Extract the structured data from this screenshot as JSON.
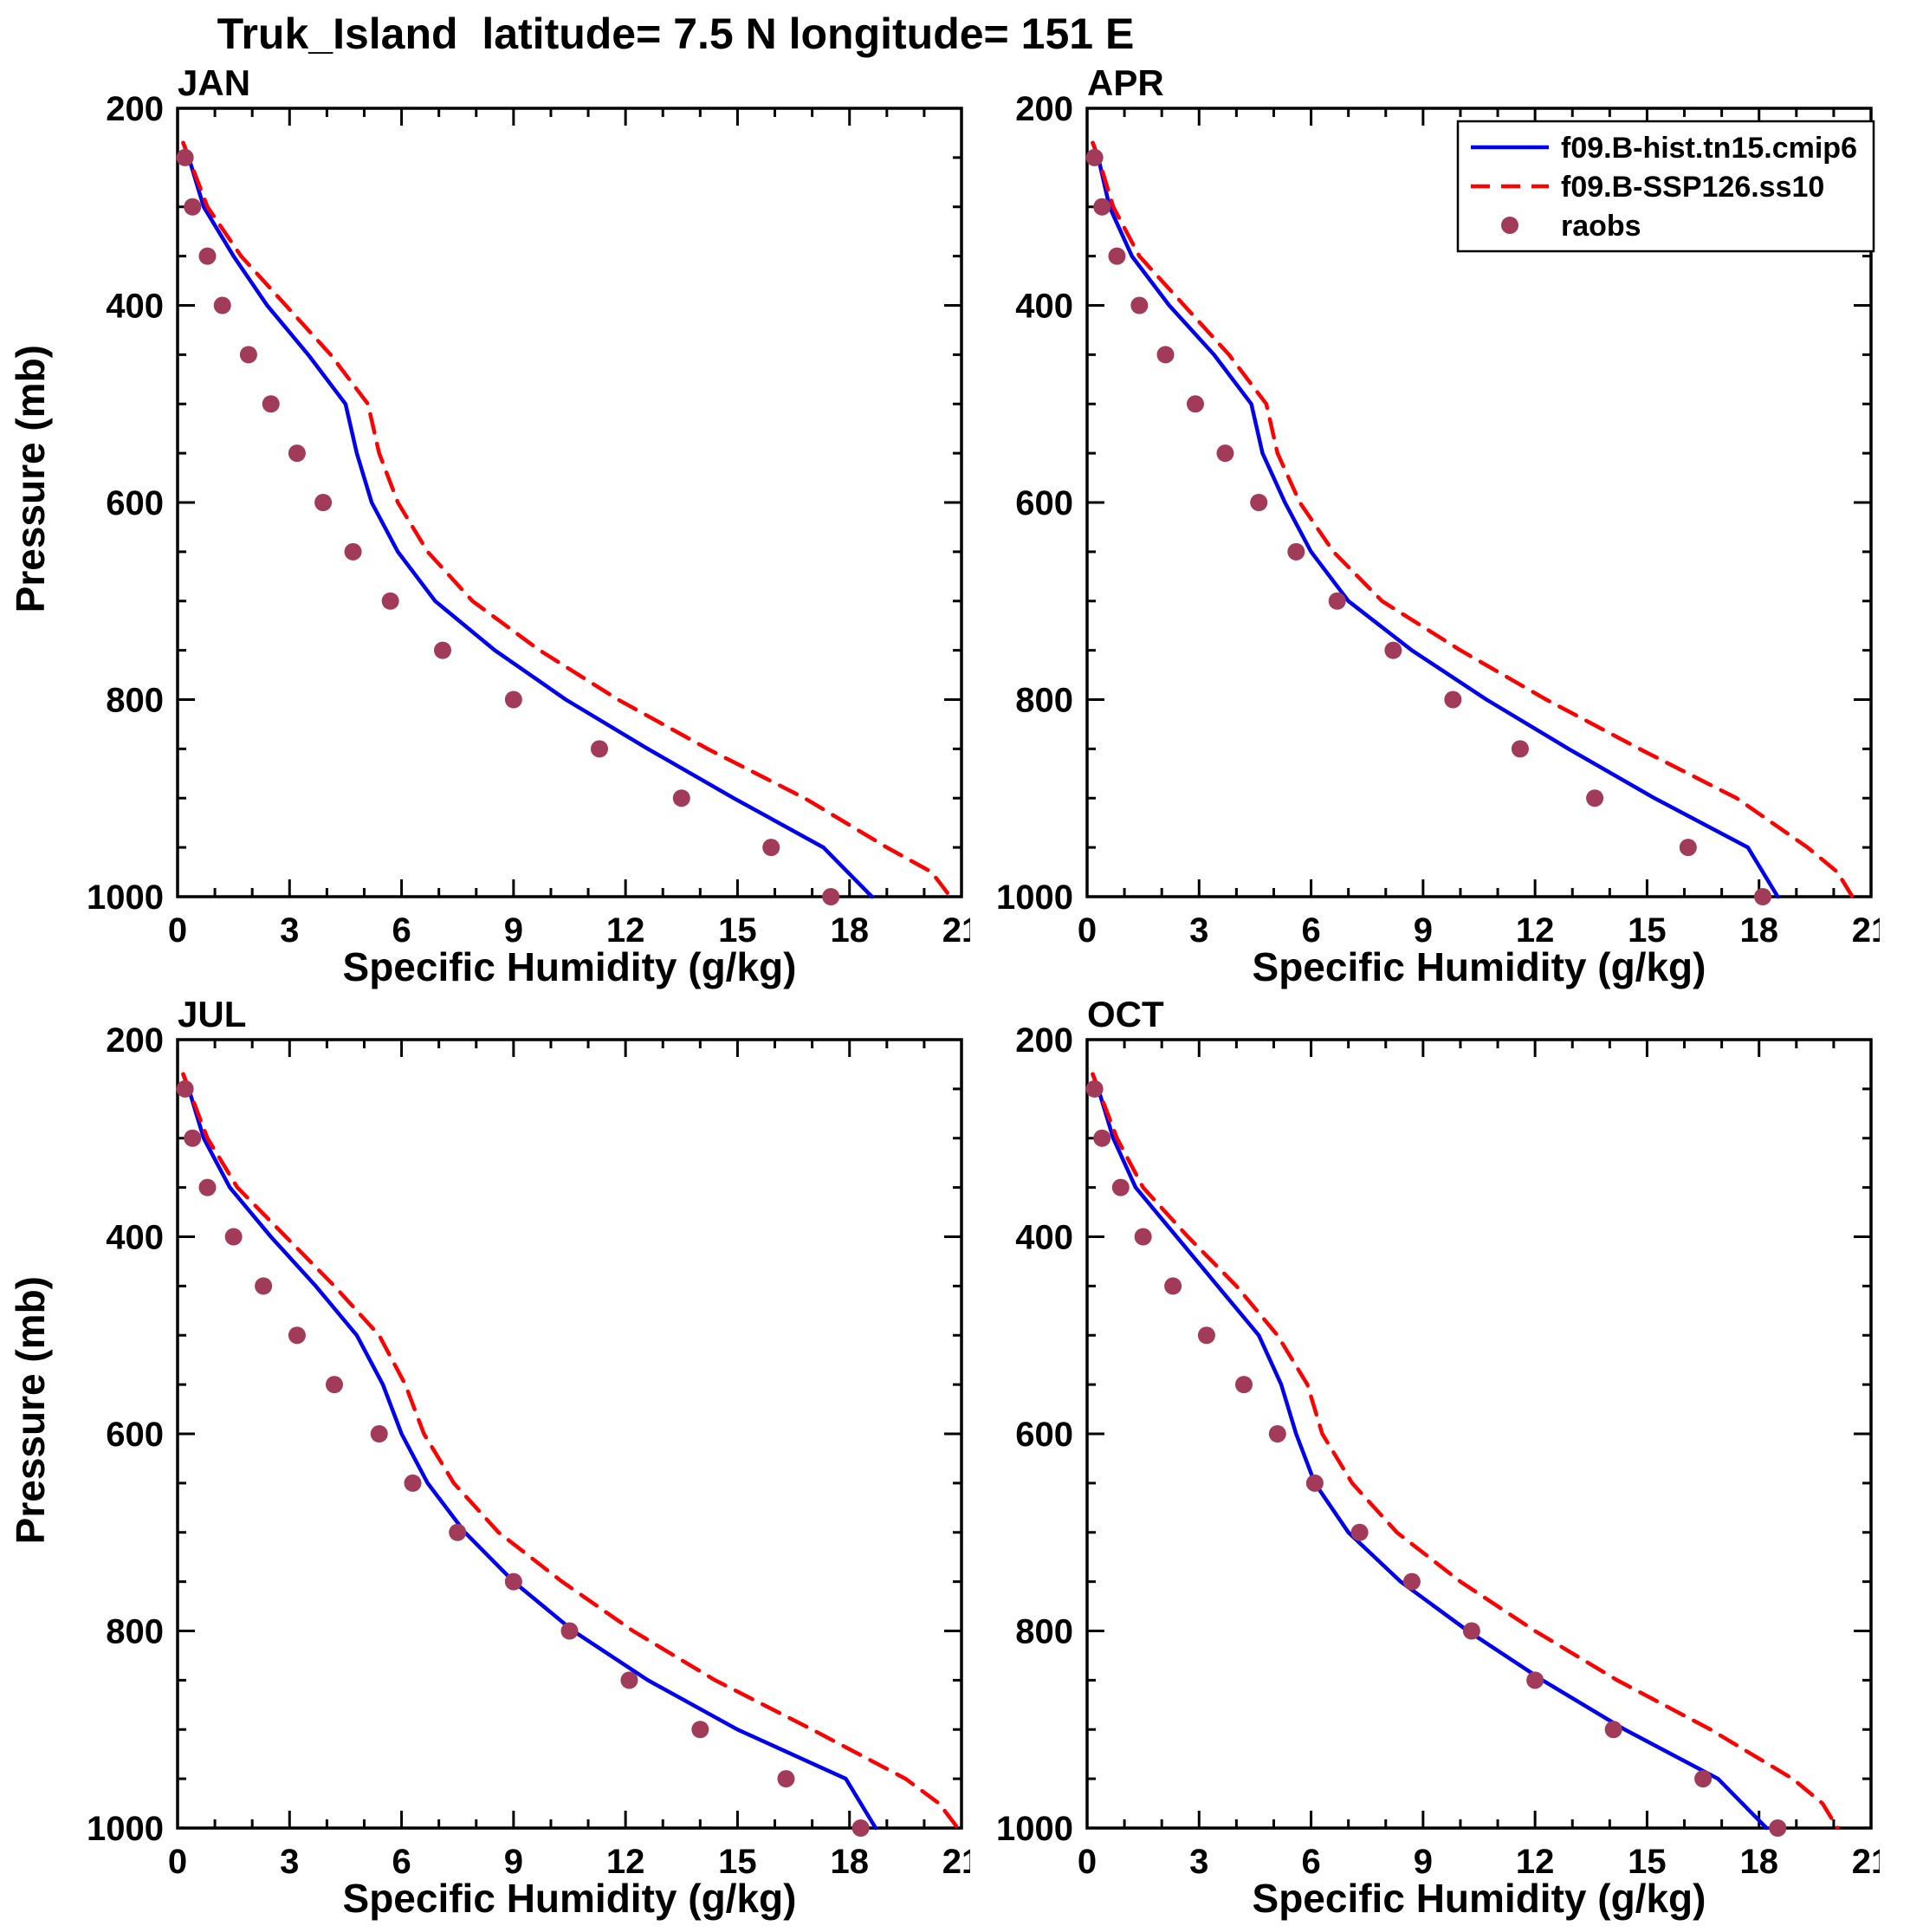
{
  "title": "Truk_Island  latitude= 7.5 N longitude= 151 E",
  "ylabel": "Pressure (mb)",
  "xlabel": "Specific Humidity (g/kg)",
  "colors": {
    "hist_line": "#0000ee",
    "ssp_line": "#ff0000",
    "raobs_dot": "#a23b5a",
    "axis": "#000000",
    "background": "#ffffff"
  },
  "legend": {
    "items": [
      {
        "label": "f09.B-hist.tn15.cmip6",
        "style": "solid-line",
        "color": "#0000ee"
      },
      {
        "label": "f09.B-SSP126.ss10",
        "style": "dashed-line",
        "color": "#ff0000"
      },
      {
        "label": "raobs",
        "style": "dot",
        "color": "#a23b5a"
      }
    ],
    "position": "top-right-of-APR-panel"
  },
  "axes": {
    "x": {
      "label": "Specific Humidity (g/kg)",
      "min": 0,
      "max": 21,
      "major_step": 3,
      "minor_step": 1,
      "ticks": [
        0,
        3,
        6,
        9,
        12,
        15,
        18,
        21
      ]
    },
    "y": {
      "label": "Pressure (mb)",
      "min": 200,
      "max": 1000,
      "major_step": 200,
      "minor_step": 50,
      "ticks": [
        200,
        400,
        600,
        800,
        1000
      ],
      "inverted": true,
      "grid": false
    }
  },
  "chart_data": [
    {
      "type": "line",
      "title": "JAN",
      "xlabel": "Specific Humidity (g/kg)",
      "ylabel": "Pressure (mb)",
      "xlim": [
        0,
        21
      ],
      "ylim": [
        200,
        1000
      ],
      "series": [
        {
          "name": "f09.B-hist.tn15.cmip6",
          "kind": "line",
          "dash": "solid",
          "color": "#0000ee",
          "pressure_mb": [
            235,
            250,
            300,
            350,
            400,
            450,
            500,
            550,
            600,
            650,
            700,
            750,
            800,
            850,
            900,
            950,
            1000
          ],
          "humidity_g_kg": [
            0.15,
            0.3,
            0.7,
            1.5,
            2.4,
            3.5,
            4.5,
            4.8,
            5.2,
            5.9,
            6.9,
            8.5,
            10.4,
            12.6,
            14.9,
            17.3,
            18.6
          ]
        },
        {
          "name": "f09.B-SSP126.ss10",
          "kind": "line",
          "dash": "dashed",
          "color": "#ff0000",
          "pressure_mb": [
            235,
            250,
            300,
            350,
            400,
            450,
            500,
            550,
            600,
            650,
            700,
            750,
            800,
            850,
            900,
            950,
            975,
            1000
          ],
          "humidity_g_kg": [
            0.15,
            0.3,
            0.8,
            1.7,
            2.9,
            4.1,
            5.1,
            5.4,
            5.9,
            6.7,
            7.9,
            9.7,
            11.8,
            14.2,
            16.8,
            19.0,
            20.2,
            20.7
          ]
        },
        {
          "name": "raobs",
          "kind": "scatter",
          "color": "#a23b5a",
          "pressure_mb": [
            250,
            300,
            350,
            400,
            450,
            500,
            550,
            600,
            650,
            700,
            750,
            800,
            850,
            900,
            950,
            1000
          ],
          "humidity_g_kg": [
            0.2,
            0.4,
            0.8,
            1.2,
            1.9,
            2.5,
            3.2,
            3.9,
            4.7,
            5.7,
            7.1,
            9.0,
            11.3,
            13.5,
            15.9,
            17.5
          ]
        }
      ]
    },
    {
      "type": "line",
      "title": "APR",
      "xlabel": "Specific Humidity (g/kg)",
      "ylabel": "Pressure (mb)",
      "xlim": [
        0,
        21
      ],
      "ylim": [
        200,
        1000
      ],
      "series": [
        {
          "name": "f09.B-hist.tn15.cmip6",
          "kind": "line",
          "dash": "solid",
          "color": "#0000ee",
          "pressure_mb": [
            235,
            250,
            300,
            350,
            400,
            450,
            500,
            550,
            600,
            650,
            700,
            750,
            800,
            850,
            900,
            950,
            1000
          ],
          "humidity_g_kg": [
            0.15,
            0.3,
            0.6,
            1.2,
            2.2,
            3.4,
            4.4,
            4.7,
            5.3,
            6.0,
            7.0,
            8.7,
            10.7,
            12.9,
            15.2,
            17.7,
            18.5
          ]
        },
        {
          "name": "f09.B-SSP126.ss10",
          "kind": "line",
          "dash": "dashed",
          "color": "#ff0000",
          "pressure_mb": [
            235,
            250,
            300,
            350,
            400,
            450,
            500,
            550,
            600,
            650,
            700,
            750,
            800,
            850,
            900,
            950,
            975,
            1000
          ],
          "humidity_g_kg": [
            0.15,
            0.3,
            0.7,
            1.4,
            2.6,
            3.8,
            4.8,
            5.1,
            5.7,
            6.6,
            7.9,
            10.0,
            12.3,
            14.8,
            17.4,
            19.3,
            20.1,
            20.5
          ]
        },
        {
          "name": "raobs",
          "kind": "scatter",
          "color": "#a23b5a",
          "pressure_mb": [
            250,
            300,
            350,
            400,
            450,
            500,
            550,
            600,
            650,
            700,
            750,
            800,
            850,
            900,
            950,
            1000
          ],
          "humidity_g_kg": [
            0.2,
            0.4,
            0.8,
            1.4,
            2.1,
            2.9,
            3.7,
            4.6,
            5.6,
            6.7,
            8.2,
            9.8,
            11.6,
            13.6,
            16.1,
            18.1
          ]
        }
      ]
    },
    {
      "type": "line",
      "title": "JUL",
      "xlabel": "Specific Humidity (g/kg)",
      "ylabel": "Pressure (mb)",
      "xlim": [
        0,
        21
      ],
      "ylim": [
        200,
        1000
      ],
      "series": [
        {
          "name": "f09.B-hist.tn15.cmip6",
          "kind": "line",
          "dash": "solid",
          "color": "#0000ee",
          "pressure_mb": [
            235,
            250,
            300,
            350,
            400,
            450,
            500,
            550,
            600,
            650,
            700,
            750,
            800,
            850,
            900,
            950,
            1000
          ],
          "humidity_g_kg": [
            0.15,
            0.3,
            0.7,
            1.4,
            2.5,
            3.7,
            4.8,
            5.5,
            6.0,
            6.7,
            7.7,
            9.0,
            10.6,
            12.6,
            15.0,
            17.9,
            18.7
          ]
        },
        {
          "name": "f09.B-SSP126.ss10",
          "kind": "line",
          "dash": "dashed",
          "color": "#ff0000",
          "pressure_mb": [
            235,
            250,
            300,
            350,
            400,
            450,
            500,
            550,
            600,
            650,
            700,
            750,
            800,
            850,
            900,
            950,
            975,
            1000
          ],
          "humidity_g_kg": [
            0.15,
            0.3,
            0.8,
            1.6,
            2.9,
            4.2,
            5.4,
            6.1,
            6.6,
            7.4,
            8.6,
            10.3,
            12.2,
            14.4,
            17.0,
            19.5,
            20.4,
            20.9
          ]
        },
        {
          "name": "raobs",
          "kind": "scatter",
          "color": "#a23b5a",
          "pressure_mb": [
            250,
            300,
            350,
            400,
            450,
            500,
            550,
            600,
            650,
            700,
            750,
            800,
            850,
            900,
            950,
            1000
          ],
          "humidity_g_kg": [
            0.2,
            0.4,
            0.8,
            1.5,
            2.3,
            3.2,
            4.2,
            5.4,
            6.3,
            7.5,
            9.0,
            10.5,
            12.1,
            14.0,
            16.3,
            18.3
          ]
        }
      ]
    },
    {
      "type": "line",
      "title": "OCT",
      "xlabel": "Specific Humidity (g/kg)",
      "ylabel": "Pressure (mb)",
      "xlim": [
        0,
        21
      ],
      "ylim": [
        200,
        1000
      ],
      "series": [
        {
          "name": "f09.B-hist.tn15.cmip6",
          "kind": "line",
          "dash": "solid",
          "color": "#0000ee",
          "pressure_mb": [
            235,
            250,
            300,
            350,
            400,
            450,
            500,
            550,
            600,
            650,
            700,
            750,
            800,
            850,
            900,
            950,
            1000
          ],
          "humidity_g_kg": [
            0.15,
            0.3,
            0.7,
            1.3,
            2.4,
            3.5,
            4.6,
            5.2,
            5.6,
            6.1,
            7.0,
            8.4,
            10.2,
            12.2,
            14.4,
            16.9,
            18.2
          ]
        },
        {
          "name": "f09.B-SSP126.ss10",
          "kind": "line",
          "dash": "dashed",
          "color": "#ff0000",
          "pressure_mb": [
            235,
            250,
            300,
            350,
            400,
            450,
            500,
            550,
            600,
            650,
            700,
            750,
            800,
            850,
            900,
            950,
            975,
            1000
          ],
          "humidity_g_kg": [
            0.15,
            0.3,
            0.8,
            1.5,
            2.7,
            4.0,
            5.1,
            5.9,
            6.3,
            7.1,
            8.3,
            10.0,
            12.0,
            14.2,
            16.7,
            18.9,
            19.7,
            20.1
          ]
        },
        {
          "name": "raobs",
          "kind": "scatter",
          "color": "#a23b5a",
          "pressure_mb": [
            250,
            300,
            350,
            400,
            450,
            500,
            550,
            600,
            650,
            700,
            750,
            800,
            850,
            900,
            950,
            1000
          ],
          "humidity_g_kg": [
            0.2,
            0.4,
            0.9,
            1.5,
            2.3,
            3.2,
            4.2,
            5.1,
            6.1,
            7.3,
            8.7,
            10.3,
            12.0,
            14.1,
            16.5,
            18.5
          ]
        }
      ]
    }
  ]
}
